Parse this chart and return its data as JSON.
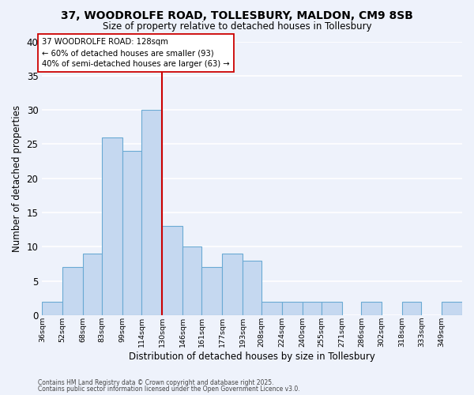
{
  "title": "37, WOODROLFE ROAD, TOLLESBURY, MALDON, CM9 8SB",
  "subtitle": "Size of property relative to detached houses in Tollesbury",
  "xlabel": "Distribution of detached houses by size in Tollesbury",
  "ylabel": "Number of detached properties",
  "bin_labels": [
    "36sqm",
    "52sqm",
    "68sqm",
    "83sqm",
    "99sqm",
    "114sqm",
    "130sqm",
    "146sqm",
    "161sqm",
    "177sqm",
    "193sqm",
    "208sqm",
    "224sqm",
    "240sqm",
    "255sqm",
    "271sqm",
    "286sqm",
    "302sqm",
    "318sqm",
    "333sqm",
    "349sqm"
  ],
  "bin_edges": [
    36,
    52,
    68,
    83,
    99,
    114,
    130,
    146,
    161,
    177,
    193,
    208,
    224,
    240,
    255,
    271,
    286,
    302,
    318,
    333,
    349,
    365
  ],
  "counts": [
    2,
    7,
    9,
    26,
    24,
    30,
    13,
    10,
    7,
    9,
    8,
    2,
    2,
    2,
    2,
    0,
    2,
    0,
    2,
    0,
    2
  ],
  "bar_color": "#c5d8f0",
  "bar_edge_color": "#6aaad4",
  "vline_x": 130,
  "vline_color": "#cc0000",
  "annotation_title": "37 WOODROLFE ROAD: 128sqm",
  "annotation_line1": "← 60% of detached houses are smaller (93)",
  "annotation_line2": "40% of semi-detached houses are larger (63) →",
  "annotation_box_facecolor": "#ffffff",
  "annotation_box_edgecolor": "#cc0000",
  "ylim": [
    0,
    40
  ],
  "yticks": [
    0,
    5,
    10,
    15,
    20,
    25,
    30,
    35,
    40
  ],
  "background_color": "#eef2fb",
  "grid_color": "#ffffff",
  "footer_line1": "Contains HM Land Registry data © Crown copyright and database right 2025.",
  "footer_line2": "Contains public sector information licensed under the Open Government Licence v3.0."
}
